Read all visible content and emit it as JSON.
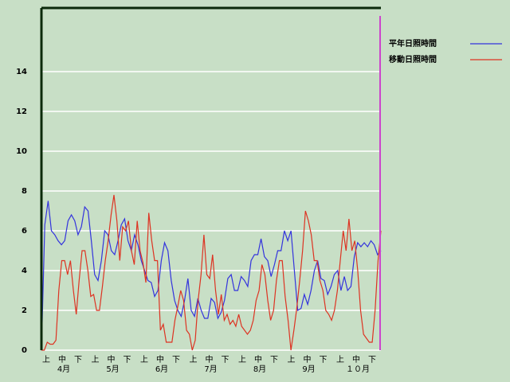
{
  "chart_data": {
    "type": "line",
    "series": [
      {
        "name": "平年日照時間",
        "color": "#3333dd",
        "values": [
          0,
          6.3,
          7.5,
          6,
          5.8,
          5.5,
          5.3,
          5.5,
          6.5,
          6.8,
          6.5,
          5.8,
          6.2,
          7.2,
          7,
          5.5,
          3.8,
          3.5,
          4.5,
          6,
          5.8,
          5,
          4.8,
          5.5,
          6.3,
          6.6,
          5.5,
          5,
          5.8,
          5.3,
          4.5,
          4,
          3.5,
          3.4,
          2.7,
          3,
          4.5,
          5.4,
          5,
          3.5,
          2.5,
          2,
          1.7,
          2.5,
          3.6,
          2,
          1.7,
          2.6,
          2,
          1.6,
          1.6,
          2.6,
          2.4,
          1.6,
          1.9,
          2.5,
          3.6,
          3.8,
          3,
          3,
          3.7,
          3.5,
          3.2,
          4.5,
          4.8,
          4.8,
          5.6,
          4.7,
          4.5,
          3.7,
          4.3,
          5,
          5,
          6,
          5.5,
          6,
          4,
          2,
          2.1,
          2.8,
          2.3,
          3,
          4,
          4.5,
          3.6,
          3.5,
          2.8,
          3.2,
          3.8,
          4,
          3,
          3.7,
          3,
          3.2,
          4.7,
          5.4,
          5.2,
          5.4,
          5.2,
          5.5,
          5.3,
          4.8,
          5
        ]
      },
      {
        "name": "移動日照時間",
        "color": "#dd3322",
        "values": [
          0,
          0,
          0.4,
          0.3,
          0.3,
          0.5,
          3,
          4.5,
          4.5,
          3.8,
          4.5,
          3,
          1.8,
          3.5,
          5,
          5,
          4,
          2.7,
          2.8,
          2,
          2,
          3.2,
          4.5,
          5.5,
          6.8,
          7.8,
          6.5,
          4.5,
          6.2,
          6,
          6.5,
          5,
          4.3,
          6.5,
          5,
          4.4,
          3.4,
          6.9,
          5.5,
          4.5,
          4.5,
          1,
          1.3,
          0.4,
          0.4,
          0.4,
          1.5,
          2.2,
          3,
          2.5,
          1,
          0.8,
          0,
          0.5,
          2.5,
          3.8,
          5.8,
          3.8,
          3.6,
          4.8,
          3,
          1.8,
          2.8,
          1.5,
          1.8,
          1.3,
          1.5,
          1.2,
          1.8,
          1.2,
          1,
          0.8,
          1,
          1.5,
          2.5,
          3,
          4.3,
          3.8,
          2.5,
          1.5,
          2,
          3.5,
          4.5,
          4.5,
          2.7,
          1.5,
          0,
          1,
          2.1,
          3.5,
          5,
          7,
          6.5,
          5.8,
          4.5,
          4.5,
          3.5,
          3,
          2,
          1.8,
          1.5,
          2,
          3,
          4.5,
          6,
          5,
          6.6,
          5,
          5.5,
          4,
          2,
          0.8,
          0.6,
          0.4,
          0.4,
          2,
          4.5,
          6
        ]
      }
    ],
    "x_labels": [
      "上",
      "中",
      "下",
      "上",
      "中",
      "下",
      "上",
      "中",
      "下",
      "上",
      "中",
      "下",
      "上",
      "中",
      "下",
      "上",
      "中",
      "下",
      "上",
      "中",
      "下"
    ],
    "months": [
      "4月",
      "5月",
      "6月",
      "7月",
      "8月",
      "9月",
      "１０月"
    ],
    "ylim": [
      0,
      17.2
    ],
    "yticks": [
      0,
      2,
      4,
      6,
      8,
      10,
      12,
      14
    ],
    "grid": true
  }
}
